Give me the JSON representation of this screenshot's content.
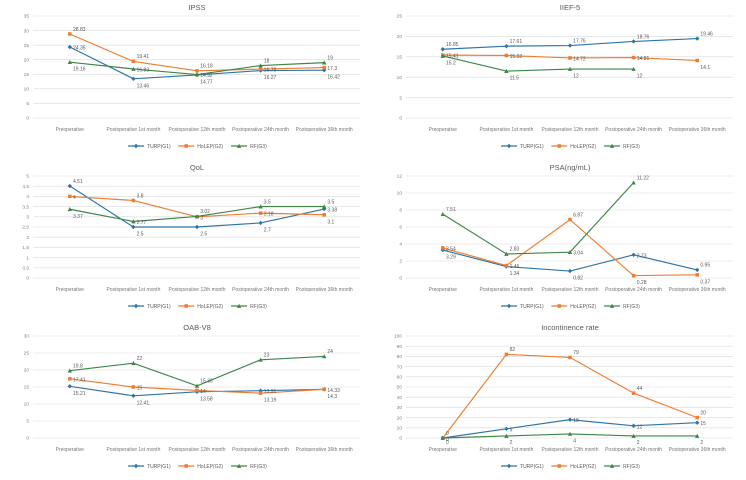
{
  "page": {
    "background": "#ffffff"
  },
  "colors": {
    "turp": "#2e75a8",
    "holep": "#ed7d31",
    "rf": "#3e8648",
    "grid": "#d9d9d9",
    "tick_text": "#808080",
    "label_text": "#595959",
    "title_text": "#595959",
    "axis_text": "#757575"
  },
  "legend": {
    "items": [
      {
        "label": "TURP(G1)",
        "color_key": "turp",
        "marker": "diamond"
      },
      {
        "label": "HoLEP(G2)",
        "color_key": "holep",
        "marker": "square"
      },
      {
        "label": "RF(G3)",
        "color_key": "rf",
        "marker": "triangle"
      }
    ]
  },
  "categories": [
    "Preoperative",
    "Postoperative 1st month",
    "Postoperative 12th month",
    "Postoperative 24th month",
    "Postoperative 36th month"
  ],
  "chart_data": [
    {
      "id": "ipss",
      "type": "line",
      "title": "IPSS",
      "categories": [
        "Preoperative",
        "Postoperative 1st month",
        "Postoperative 12th month",
        "Postoperative 24th month",
        "Postoperative 36th month"
      ],
      "ylim": [
        0,
        35
      ],
      "y_ticks": [
        "0",
        "5",
        "10",
        "15",
        "20",
        "25",
        "30",
        "35"
      ],
      "grid": true,
      "legend_position": "bottom",
      "series": [
        {
          "name": "TURP(G1)",
          "color_key": "turp",
          "marker": "diamond",
          "values": [
            24.35,
            13.46,
            14.77,
            16.27,
            16.42
          ]
        },
        {
          "name": "HoLEP(G2)",
          "color_key": "holep",
          "marker": "square",
          "values": [
            28.83,
            19.41,
            16.18,
            16.78,
            17.3
          ]
        },
        {
          "name": "RF(G3)",
          "color_key": "rf",
          "marker": "triangle",
          "values": [
            19.16,
            16.83,
            14.92,
            18,
            19
          ]
        }
      ]
    },
    {
      "id": "iief5",
      "type": "line",
      "title": "IIEF-5",
      "categories": [
        "Preoperative",
        "Postoperative 1st month",
        "Postoperative 12th month",
        "Postoperative 24th month",
        "Postoperative 36th month"
      ],
      "ylim": [
        0,
        25
      ],
      "y_ticks": [
        "0",
        "5",
        "10",
        "15",
        "20",
        "25"
      ],
      "grid": true,
      "legend_position": "bottom",
      "series": [
        {
          "name": "TURP(G1)",
          "color_key": "turp",
          "marker": "diamond",
          "values": [
            16.85,
            17.61,
            17.76,
            18.76,
            19.46
          ]
        },
        {
          "name": "HoLEP(G2)",
          "color_key": "holep",
          "marker": "square",
          "values": [
            15.41,
            15.33,
            14.72,
            14.81,
            14.1
          ]
        },
        {
          "name": "RF(G3)",
          "color_key": "rf",
          "marker": "triangle",
          "values": [
            15.2,
            11.5,
            12,
            12,
            null
          ]
        }
      ]
    },
    {
      "id": "qol",
      "type": "line",
      "title": "QoL",
      "categories": [
        "Preoperative",
        "Postoperative 1st month",
        "Postoperative 12th month",
        "Postoperative 24th month",
        "Postoperative 36th month"
      ],
      "ylim": [
        0,
        5
      ],
      "y_ticks": [
        "0",
        "0,5",
        "1",
        "1,5",
        "2",
        "2,5",
        "3",
        "3,5",
        "4",
        "4,5",
        "5"
      ],
      "grid": true,
      "legend_position": "bottom",
      "series": [
        {
          "name": "TURP(G1)",
          "color_key": "turp",
          "marker": "diamond",
          "values": [
            4.51,
            2.5,
            2.5,
            2.7,
            3.38
          ]
        },
        {
          "name": "HoLEP(G2)",
          "color_key": "holep",
          "marker": "square",
          "values": [
            4,
            3.8,
            3,
            3.18,
            3.1
          ]
        },
        {
          "name": "RF(G3)",
          "color_key": "rf",
          "marker": "triangle",
          "values": [
            3.37,
            2.77,
            3.02,
            3.5,
            3.5
          ]
        }
      ]
    },
    {
      "id": "psa",
      "type": "line",
      "title": "PSA(ng/mL)",
      "categories": [
        "Preoperative",
        "Postoperative 1st month",
        "Postoperative 12th month",
        "Postoperative 24th month",
        "Postoperative 36th month"
      ],
      "ylim": [
        0,
        12
      ],
      "y_ticks": [
        "0",
        "2",
        "4",
        "6",
        "8",
        "10",
        "12"
      ],
      "grid": true,
      "legend_position": "bottom",
      "series": [
        {
          "name": "TURP(G1)",
          "color_key": "turp",
          "marker": "diamond",
          "values": [
            3.29,
            1.34,
            0.82,
            2.73,
            0.95
          ]
        },
        {
          "name": "HoLEP(G2)",
          "color_key": "holep",
          "marker": "square",
          "values": [
            3.54,
            1.46,
            6.87,
            0.28,
            0.37
          ]
        },
        {
          "name": "RF(G3)",
          "color_key": "rf",
          "marker": "triangle",
          "values": [
            7.51,
            2.83,
            3.04,
            11.22,
            null
          ]
        }
      ]
    },
    {
      "id": "oabv8",
      "type": "line",
      "title": "OAB-V8",
      "categories": [
        "Preoperative",
        "Postoperative 1st month",
        "Postoperative 12th month",
        "Postoperative 24th month",
        "Postoperative 36th month"
      ],
      "ylim": [
        0,
        30
      ],
      "y_ticks": [
        "0",
        "5",
        "10",
        "15",
        "20",
        "25",
        "30"
      ],
      "grid": true,
      "legend_position": "bottom",
      "series": [
        {
          "name": "TURP(G1)",
          "color_key": "turp",
          "marker": "diamond",
          "values": [
            15.21,
            12.41,
            13.58,
            13.91,
            14.3
          ]
        },
        {
          "name": "HoLEP(G2)",
          "color_key": "holep",
          "marker": "square",
          "values": [
            17.41,
            15,
            14,
            13.19,
            14.33
          ]
        },
        {
          "name": "RF(G3)",
          "color_key": "rf",
          "marker": "triangle",
          "values": [
            19.8,
            22,
            15.33,
            23,
            24
          ]
        }
      ]
    },
    {
      "id": "incontinence",
      "type": "line",
      "title": "Incontinence rate",
      "categories": [
        "Preoperative",
        "Postoperative 1st month",
        "Postoperative 12th month",
        "Postoperative 24th month",
        "Postoperative 36th month"
      ],
      "ylim": [
        0,
        100
      ],
      "y_ticks": [
        "0",
        "10",
        "20",
        "30",
        "40",
        "50",
        "60",
        "70",
        "80",
        "90",
        "100"
      ],
      "grid": true,
      "legend_position": "bottom",
      "series": [
        {
          "name": "TURP(G1)",
          "color_key": "turp",
          "marker": "diamond",
          "values": [
            0,
            9,
            18,
            12,
            15
          ]
        },
        {
          "name": "HoLEP(G2)",
          "color_key": "holep",
          "marker": "square",
          "values": [
            0,
            82,
            79,
            44,
            20
          ]
        },
        {
          "name": "RF(G3)",
          "color_key": "rf",
          "marker": "triangle",
          "values": [
            0,
            2,
            4,
            2,
            2
          ]
        }
      ]
    }
  ]
}
